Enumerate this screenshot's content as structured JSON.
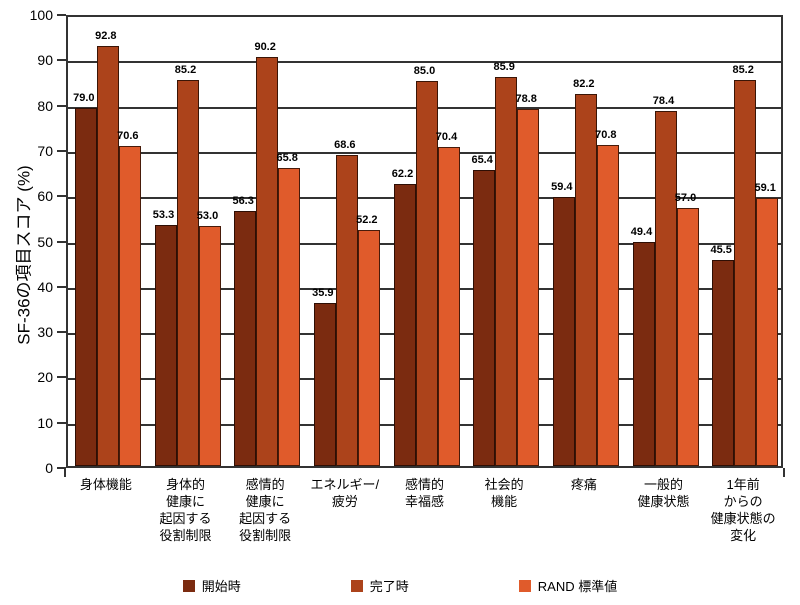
{
  "chart_data": {
    "type": "bar",
    "title": "",
    "ylabel": "SF-36の項目スコア (%)",
    "xlabel": "",
    "ylim": [
      0,
      100
    ],
    "ytick_step": 10,
    "grid": "horizontal",
    "legend_position": "bottom",
    "categories": [
      "身体機能",
      "身体的\n健康に\n起因する\n役割制限",
      "感情的\n健康に\n起因する\n役割制限",
      "エネルギー/\n疲労",
      "感情的\n幸福感",
      "社会的\n機能",
      "疼痛",
      "一般的\n健康状態",
      "1年前\nからの\n健康状態の\n変化"
    ],
    "series": [
      {
        "name": "開始時",
        "color": "#7B2B10",
        "values": [
          79.0,
          53.3,
          56.3,
          35.9,
          62.2,
          65.4,
          59.4,
          49.4,
          45.5
        ]
      },
      {
        "name": "完了時",
        "color": "#AC431B",
        "values": [
          92.8,
          85.2,
          90.2,
          68.6,
          85.0,
          85.9,
          82.2,
          78.4,
          85.2
        ]
      },
      {
        "name": "RAND 標準値",
        "color": "#E05B2B",
        "values": [
          70.6,
          53.0,
          65.8,
          52.2,
          70.4,
          78.8,
          70.8,
          57.0,
          59.1
        ]
      }
    ],
    "value_label_decimals": 1,
    "line_color": "#333333"
  }
}
